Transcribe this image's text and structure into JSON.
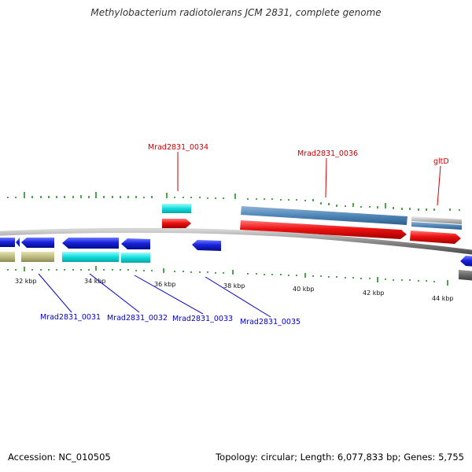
{
  "header": {
    "title": "Methylobacterium radiotolerans JCM 2831, complete genome"
  },
  "footer": {
    "accession": "Accession: NC_010505",
    "summary": "Topology: circular; Length: 6,077,833 bp; Genes: 5,755"
  },
  "scale_labels": [
    "32 kbp",
    "34 kbp",
    "36 kbp",
    "38 kbp",
    "40 kbp",
    "42 kbp",
    "44 kbp"
  ],
  "gene_labels_top": [
    "Mrad2831_0034",
    "Mrad2831_0036",
    "gltD"
  ],
  "gene_labels_bottom": [
    "Mrad2831_0031",
    "Mrad2831_0032",
    "Mrad2831_0033",
    "Mrad2831_0035"
  ],
  "colors": {
    "backbone": "#8a8a8a",
    "forward_gene": "#ee1111",
    "reverse_gene": "#1a22dd",
    "forward_cds": "#4f86b8",
    "reverse_cds": "#11dddd",
    "pseudo": "#bdbb7f",
    "other": "#666666",
    "gc_skew_tick": "#118811",
    "label_red": "#cc0000",
    "label_blue": "#0000cc"
  }
}
